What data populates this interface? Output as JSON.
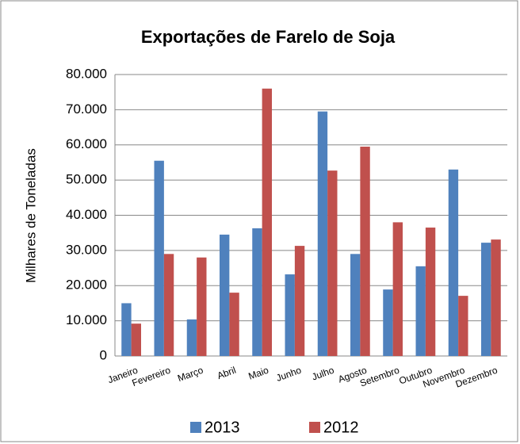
{
  "chart_data": {
    "type": "bar",
    "title": "Exportações de Farelo de Soja",
    "y_label": "Milhares de Toneladas",
    "categories": [
      "Janeiro",
      "Fevereiro",
      "Março",
      "Abril",
      "Maio",
      "Junho",
      "Julho",
      "Agosto",
      "Setembro",
      "Outubro",
      "Novembro",
      "Dezembro"
    ],
    "series": [
      {
        "name": "2013",
        "color": "#4f81bd",
        "values": [
          15000,
          55500,
          10400,
          34500,
          36300,
          23200,
          69500,
          29000,
          18900,
          25500,
          53000,
          32200
        ]
      },
      {
        "name": "2012",
        "color": "#c0504d",
        "values": [
          9200,
          29000,
          28000,
          18000,
          76000,
          31300,
          52700,
          59500,
          38000,
          36500,
          17100,
          33100
        ]
      }
    ],
    "ylim": [
      0,
      80000
    ],
    "yticks": [
      0,
      {
        "value": 10000,
        "label": "10.000"
      },
      {
        "value": 20000,
        "label": "20.000"
      },
      {
        "value": 30000,
        "label": "30.000"
      },
      {
        "value": 40000,
        "label": "40.000"
      },
      {
        "value": 50000,
        "label": "50.000"
      },
      {
        "value": 60000,
        "label": "60.000"
      },
      {
        "value": 70000,
        "label": "70.000"
      },
      {
        "value": 80000,
        "label": "80.000"
      }
    ],
    "grid": true,
    "legend": "bottom"
  }
}
